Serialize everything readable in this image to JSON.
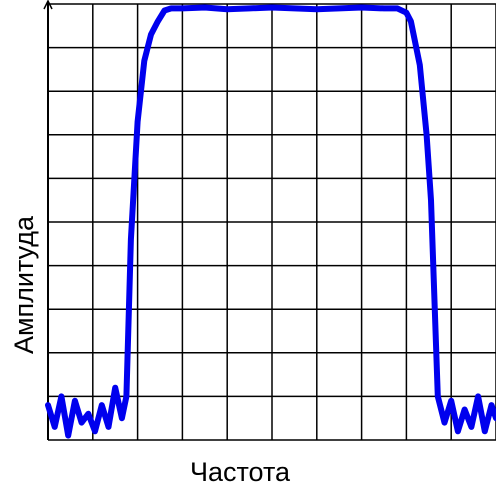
{
  "chart_data": {
    "type": "line",
    "title": "",
    "xlabel": "Частота",
    "ylabel": "Амплитуда",
    "grid": true,
    "xlim": [
      0,
      10
    ],
    "ylim": [
      0,
      10
    ],
    "series": [
      {
        "color": "#0000ee",
        "x": [
          0,
          0.15,
          0.3,
          0.45,
          0.6,
          0.75,
          0.9,
          1.05,
          1.2,
          1.35,
          1.5,
          1.65,
          1.75,
          1.85,
          2.0,
          2.15,
          2.3,
          2.45,
          2.6,
          2.75,
          2.9,
          3.0,
          3.5,
          4.0,
          4.5,
          5.0,
          5.5,
          6.0,
          6.5,
          7.0,
          7.5,
          7.8,
          8.0,
          8.1,
          8.3,
          8.45,
          8.55,
          8.7,
          8.85,
          9.0,
          9.15,
          9.3,
          9.45,
          9.6,
          9.75,
          9.9,
          10.0
        ],
        "values": [
          0.8,
          0.3,
          1.0,
          0.1,
          0.9,
          0.4,
          0.6,
          0.2,
          0.8,
          0.3,
          1.2,
          0.5,
          1.0,
          4.6,
          7.3,
          8.7,
          9.3,
          9.6,
          9.85,
          9.9,
          9.9,
          9.9,
          9.92,
          9.88,
          9.9,
          9.92,
          9.9,
          9.88,
          9.9,
          9.92,
          9.9,
          9.9,
          9.8,
          9.6,
          8.6,
          7.0,
          5.5,
          1.0,
          0.4,
          0.9,
          0.2,
          0.7,
          0.3,
          1.0,
          0.2,
          0.8,
          0.5
        ]
      }
    ]
  }
}
